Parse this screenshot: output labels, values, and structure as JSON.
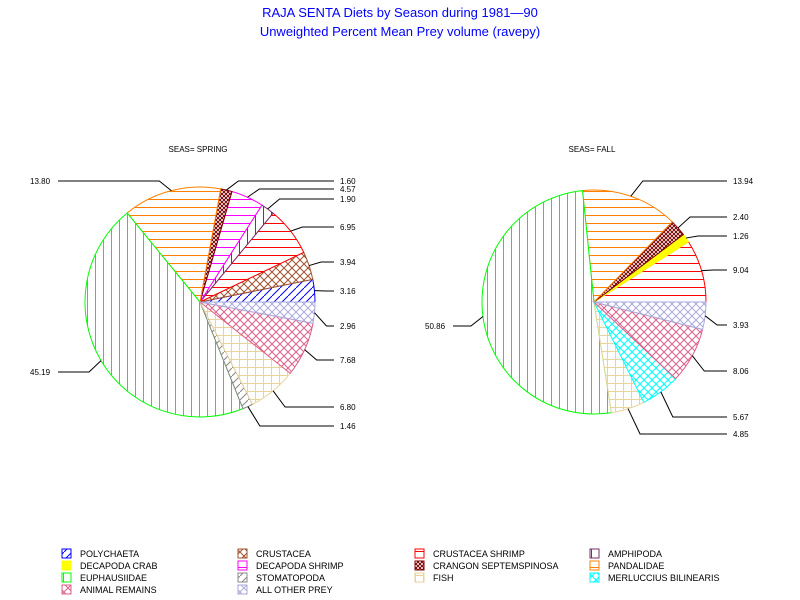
{
  "chart_data": {
    "type": "pie",
    "title": "RAJA SENTA Diets by Season during 1981—90",
    "subtitle": "Unweighted Percent Mean Prey volume (ravepy)",
    "categories": [
      {
        "name": "POLYCHAETA",
        "color": "#0000ff",
        "pattern": "diag"
      },
      {
        "name": "CRUSTACEA",
        "color": "#a0522d",
        "pattern": "xdiag"
      },
      {
        "name": "CRUSTACEA SHRIMP",
        "color": "#ff0000",
        "pattern": "horiz"
      },
      {
        "name": "AMPHIPODA",
        "color": "#7b2d6e",
        "pattern": "vert"
      },
      {
        "name": "DECAPODA CRAB",
        "color": "#ffff00",
        "pattern": "solid"
      },
      {
        "name": "DECAPODA SHRIMP",
        "color": "#ff00ff",
        "pattern": "horiz"
      },
      {
        "name": "CRANGON SEPTEMSPINOSA",
        "color": "#7a0000",
        "pattern": "dense"
      },
      {
        "name": "PANDALIDAE",
        "color": "#ff8000",
        "pattern": "horiz"
      },
      {
        "name": "EUPHAUSIIDAE",
        "color": "#00ff00",
        "pattern": "vert"
      },
      {
        "name": "STOMATOPODA",
        "color": "#888888",
        "pattern": "diag"
      },
      {
        "name": "FISH",
        "color": "#e8d49a",
        "pattern": "grid"
      },
      {
        "name": "MERLUCCIUS BILINEARIS",
        "color": "#00ffff",
        "pattern": "xdiag"
      },
      {
        "name": "ANIMAL REMAINS",
        "color": "#e0608a",
        "pattern": "xdiag"
      },
      {
        "name": "ALL OTHER PREY",
        "color": "#aaaadd",
        "pattern": "xdiag"
      }
    ],
    "legend_order": [
      "POLYCHAETA",
      "CRUSTACEA",
      "CRUSTACEA SHRIMP",
      "AMPHIPODA",
      "DECAPODA CRAB",
      "DECAPODA SHRIMP",
      "CRANGON SEPTEMSPINOSA",
      "PANDALIDAE",
      "EUPHAUSIIDAE",
      "STOMATOPODA",
      "FISH",
      "MERLUCCIUS BILINEARIS",
      "ANIMAL REMAINS",
      "ALL OTHER PREY"
    ],
    "legend_placement": "bottom",
    "pies": [
      {
        "label": "SEAS= SPRING",
        "slices": [
          {
            "name": "POLYCHAETA",
            "value": 3.16,
            "label": "3.16"
          },
          {
            "name": "CRUSTACEA",
            "value": 3.94,
            "label": "3.94"
          },
          {
            "name": "CRUSTACEA SHRIMP",
            "value": 6.95,
            "label": "6.95"
          },
          {
            "name": "AMPHIPODA",
            "value": 1.9,
            "label": "1.90"
          },
          {
            "name": "DECAPODA SHRIMP",
            "value": 4.57,
            "label": "4.57"
          },
          {
            "name": "CRANGON SEPTEMSPINOSA",
            "value": 1.6,
            "label": "1.60"
          },
          {
            "name": "PANDALIDAE",
            "value": 13.8,
            "label": "13.80"
          },
          {
            "name": "EUPHAUSIIDAE",
            "value": 45.19,
            "label": "45.19"
          },
          {
            "name": "STOMATOPODA",
            "value": 1.46,
            "label": "1.46"
          },
          {
            "name": "FISH",
            "value": 6.8,
            "label": "6.80"
          },
          {
            "name": "ANIMAL REMAINS",
            "value": 7.68,
            "label": "7.68"
          },
          {
            "name": "ALL OTHER PREY",
            "value": 2.96,
            "label": "2.96"
          }
        ]
      },
      {
        "label": "SEAS= FALL",
        "slices": [
          {
            "name": "CRUSTACEA SHRIMP",
            "value": 9.04,
            "label": "9.04"
          },
          {
            "name": "DECAPODA CRAB",
            "value": 1.26,
            "label": "1.26"
          },
          {
            "name": "CRANGON SEPTEMSPINOSA",
            "value": 2.4,
            "label": "2.40"
          },
          {
            "name": "PANDALIDAE",
            "value": 13.94,
            "label": "13.94"
          },
          {
            "name": "EUPHAUSIIDAE",
            "value": 50.86,
            "label": "50.86"
          },
          {
            "name": "FISH",
            "value": 4.85,
            "label": "4.85"
          },
          {
            "name": "MERLUCCIUS BILINEARIS",
            "value": 5.67,
            "label": "5.67"
          },
          {
            "name": "ANIMAL REMAINS",
            "value": 8.06,
            "label": "8.06"
          },
          {
            "name": "ALL OTHER PREY",
            "value": 3.93,
            "label": "3.93"
          }
        ]
      }
    ]
  }
}
